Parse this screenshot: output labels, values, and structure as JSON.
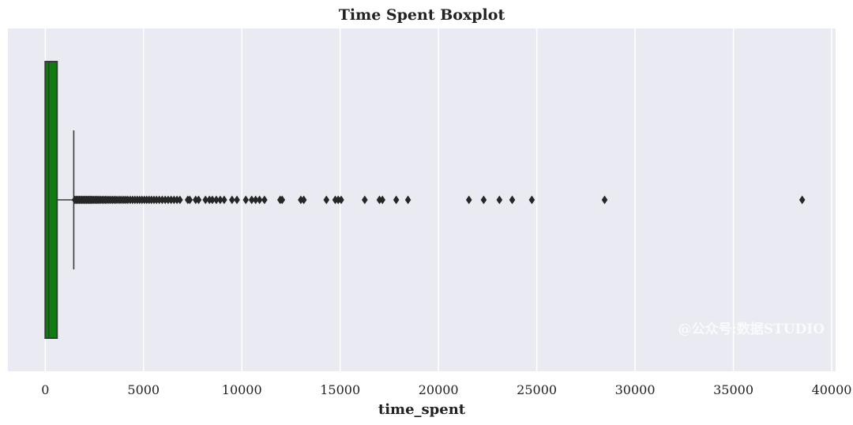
{
  "chart_data": {
    "type": "boxplot",
    "orientation": "horizontal",
    "title": "Time Spent Boxplot",
    "xlabel": "time_spent",
    "ylabel": "",
    "xlim": [
      -1900,
      40200
    ],
    "xticks": [
      0,
      5000,
      10000,
      15000,
      20000,
      25000,
      30000,
      35000,
      40000
    ],
    "xtick_labels": [
      "0",
      "5000",
      "10000",
      "15000",
      "20000",
      "25000",
      "30000",
      "35000",
      "40000"
    ],
    "grid": true,
    "box": {
      "q1": 0,
      "median": 180,
      "q3": 600,
      "whisker_low": 0,
      "whisker_high": 1450
    },
    "outliers": [
      1500,
      1560,
      1620,
      1680,
      1740,
      1800,
      1860,
      1920,
      1980,
      2040,
      2100,
      2160,
      2220,
      2280,
      2340,
      2400,
      2470,
      2540,
      2610,
      2680,
      2750,
      2830,
      2910,
      2990,
      3070,
      3150,
      3240,
      3330,
      3420,
      3510,
      3600,
      3700,
      3800,
      3900,
      4000,
      4100,
      4200,
      4320,
      4440,
      4560,
      4680,
      4800,
      4920,
      5040,
      5160,
      5280,
      5400,
      5530,
      5660,
      5800,
      5950,
      6100,
      6250,
      6400,
      6550,
      6700,
      6850,
      7250,
      7350,
      7650,
      7800,
      8150,
      8350,
      8500,
      8700,
      8900,
      9100,
      9500,
      9750,
      10200,
      10500,
      10700,
      10900,
      11150,
      11950,
      12050,
      13000,
      13150,
      14300,
      14750,
      14900,
      15050,
      16250,
      17000,
      17150,
      17850,
      18450,
      21550,
      22300,
      23100,
      23750,
      24750,
      28450,
      38500
    ],
    "colors": {
      "box_fill": "#0e7c0e",
      "lines": "#3a3a3a",
      "outliers": "#262626",
      "plot_background": "#eaeaf2",
      "grid": "#ffffff"
    }
  },
  "watermark": "@公众号:数据STUDIO"
}
